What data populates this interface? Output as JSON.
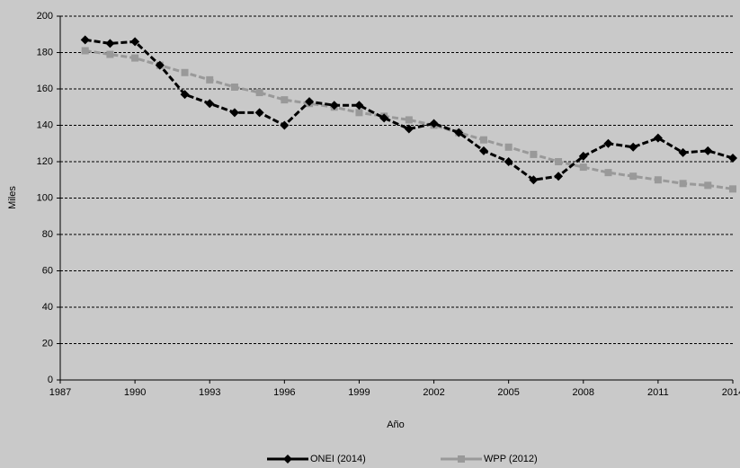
{
  "chart_data": {
    "type": "line",
    "x_label": "Año",
    "y_label": "Miles",
    "x": [
      1988,
      1989,
      1990,
      1991,
      1992,
      1993,
      1994,
      1995,
      1996,
      1997,
      1998,
      1999,
      2000,
      2001,
      2002,
      2003,
      2004,
      2005,
      2006,
      2007,
      2008,
      2009,
      2010,
      2011,
      2012,
      2013,
      2014
    ],
    "series": [
      {
        "name": "ONEI (2014)",
        "color": "#000000",
        "marker": "diamond",
        "values": [
          187,
          185,
          186,
          173,
          157,
          152,
          147,
          147,
          140,
          153,
          151,
          151,
          144,
          138,
          141,
          136,
          126,
          120,
          110,
          112,
          123,
          130,
          128,
          133,
          125,
          126,
          122
        ]
      },
      {
        "name": "WPP (2012)",
        "color": "#999999",
        "marker": "square",
        "values": [
          181,
          179,
          177,
          173,
          169,
          165,
          161,
          158,
          154,
          152,
          150,
          147,
          145,
          143,
          140,
          136,
          132,
          128,
          124,
          120,
          117,
          114,
          112,
          110,
          108,
          107,
          105
        ]
      }
    ],
    "xlim": [
      1987,
      2014
    ],
    "xticks": [
      1987,
      1990,
      1993,
      1996,
      1999,
      2002,
      2005,
      2008,
      2011,
      2014
    ],
    "ylim": [
      0,
      200
    ],
    "yticks": [
      0,
      20,
      40,
      60,
      80,
      100,
      120,
      140,
      160,
      180,
      200
    ],
    "grid": true,
    "legend": "bottom"
  }
}
